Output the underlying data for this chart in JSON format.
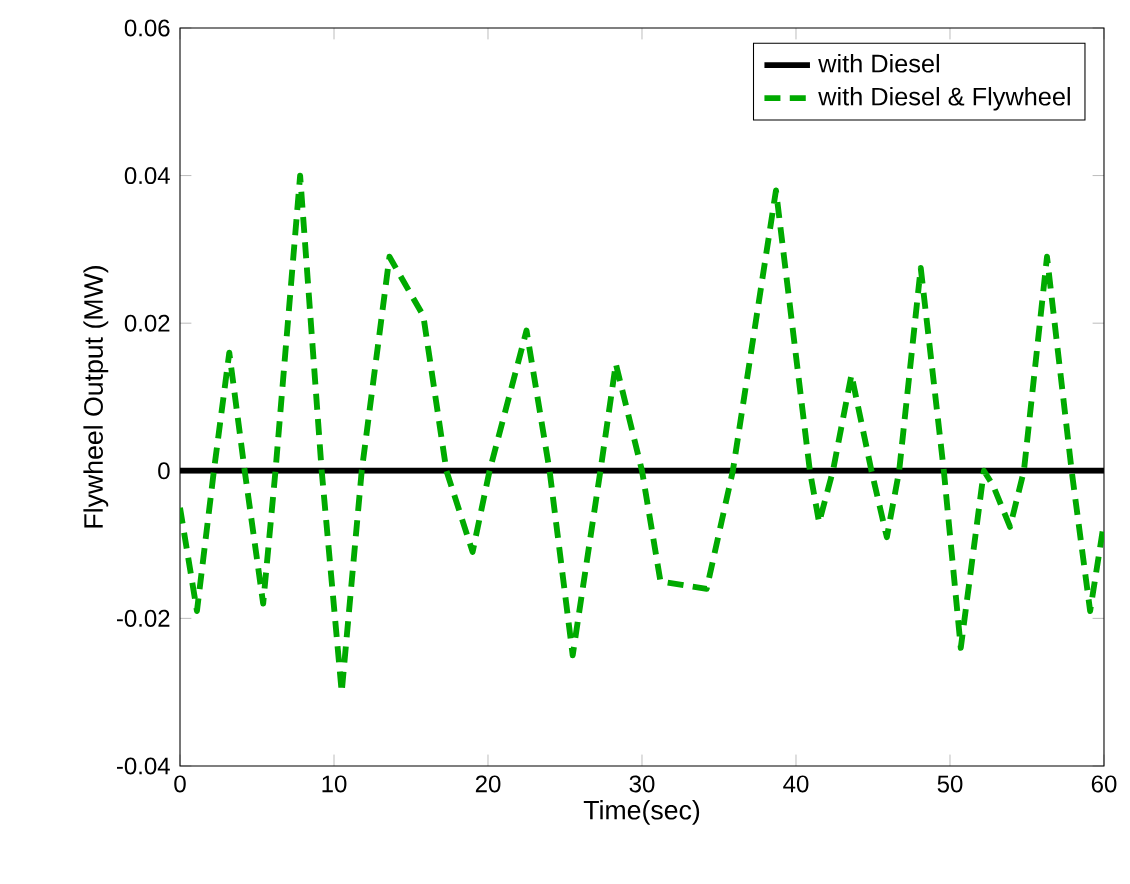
{
  "chart_data": {
    "type": "line",
    "xlabel": "Time(sec)",
    "ylabel": "Flywheel Output (MW)",
    "xlim": [
      0,
      60
    ],
    "ylim": [
      -0.04,
      0.06
    ],
    "xticks": [
      0,
      10,
      20,
      30,
      40,
      50,
      60
    ],
    "yticks": [
      -0.04,
      -0.02,
      0,
      0.02,
      0.04,
      0.06
    ],
    "grid": false,
    "legend": "top right",
    "series": [
      {
        "name": "with Diesel",
        "color": "#000000",
        "line_style": "solid",
        "x": [
          0,
          60
        ],
        "values": [
          0,
          0
        ]
      },
      {
        "name": "with Diesel & Flywheel",
        "color": "#00aa00",
        "line_style": "dashed",
        "x": [
          0,
          1.1,
          2.2,
          3.2,
          4.2,
          5.4,
          6.2,
          7.8,
          9.2,
          10.5,
          11.8,
          13.6,
          15.8,
          17.3,
          19.0,
          20.1,
          22.5,
          24.0,
          25.5,
          27.3,
          28.3,
          30.0,
          31.2,
          34.2,
          35.9,
          38.7,
          40.9,
          41.5,
          42.4,
          43.6,
          44.9,
          45.9,
          46.7,
          48.1,
          49.6,
          50.7,
          52.2,
          52.8,
          53.9,
          54.8,
          56.3,
          57.9,
          59.1,
          60
        ],
        "values": [
          -0.005,
          -0.019,
          0,
          0.016,
          0,
          -0.018,
          0,
          0.04,
          0,
          -0.03,
          0,
          0.029,
          0.021,
          0,
          -0.011,
          0,
          0.019,
          0,
          -0.025,
          0,
          0.0145,
          0,
          -0.015,
          -0.016,
          0,
          0.038,
          0,
          -0.007,
          0,
          0.013,
          0,
          -0.009,
          0,
          0.0275,
          0,
          -0.024,
          0,
          -0.002,
          -0.0076,
          0,
          0.029,
          0,
          -0.019,
          -0.007
        ]
      }
    ]
  }
}
